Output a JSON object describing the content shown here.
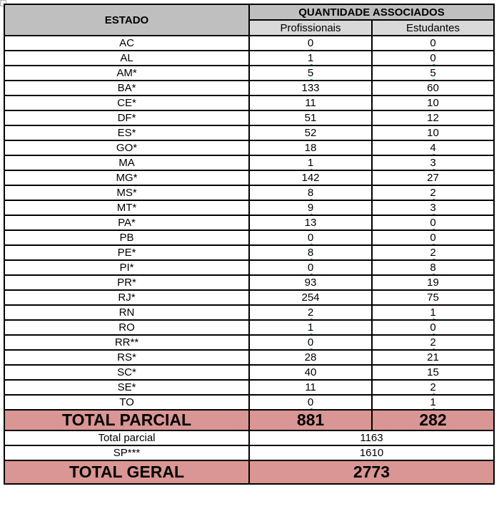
{
  "table": {
    "header": {
      "estado": "ESTADO",
      "quantidade_associados": "QUANTIDADE ASSOCIADOS",
      "profissionais": "Profissionais",
      "estudantes": "Estudantes"
    },
    "rows": [
      {
        "estado": "AC",
        "profissionais": "0",
        "estudantes": "0"
      },
      {
        "estado": "AL",
        "profissionais": "1",
        "estudantes": "0"
      },
      {
        "estado": "AM*",
        "profissionais": "5",
        "estudantes": "5"
      },
      {
        "estado": "BA*",
        "profissionais": "133",
        "estudantes": "60"
      },
      {
        "estado": "CE*",
        "profissionais": "11",
        "estudantes": "10"
      },
      {
        "estado": "DF*",
        "profissionais": "51",
        "estudantes": "12"
      },
      {
        "estado": "ES*",
        "profissionais": "52",
        "estudantes": "10"
      },
      {
        "estado": "GO*",
        "profissionais": "18",
        "estudantes": "4"
      },
      {
        "estado": "MA",
        "profissionais": "1",
        "estudantes": "3"
      },
      {
        "estado": "MG*",
        "profissionais": "142",
        "estudantes": "27"
      },
      {
        "estado": "MS*",
        "profissionais": "8",
        "estudantes": "2"
      },
      {
        "estado": "MT*",
        "profissionais": "9",
        "estudantes": "3"
      },
      {
        "estado": "PA*",
        "profissionais": "13",
        "estudantes": "0"
      },
      {
        "estado": "PB",
        "profissionais": "0",
        "estudantes": "0"
      },
      {
        "estado": "PE*",
        "profissionais": "8",
        "estudantes": "2"
      },
      {
        "estado": "PI*",
        "profissionais": "0",
        "estudantes": "8"
      },
      {
        "estado": "PR*",
        "profissionais": "93",
        "estudantes": "19"
      },
      {
        "estado": "RJ*",
        "profissionais": "254",
        "estudantes": "75"
      },
      {
        "estado": "RN",
        "profissionais": "2",
        "estudantes": "1"
      },
      {
        "estado": "RO",
        "profissionais": "1",
        "estudantes": "0"
      },
      {
        "estado": "RR**",
        "profissionais": "0",
        "estudantes": "2"
      },
      {
        "estado": "RS*",
        "profissionais": "28",
        "estudantes": "21"
      },
      {
        "estado": "SC*",
        "profissionais": "40",
        "estudantes": "15"
      },
      {
        "estado": "SE*",
        "profissionais": "11",
        "estudantes": "2"
      },
      {
        "estado": "TO",
        "profissionais": "0",
        "estudantes": "1"
      }
    ],
    "total_parcial_row": {
      "label": "TOTAL PARCIAL",
      "profissionais": "881",
      "estudantes": "282"
    },
    "subtotal_row": {
      "label": "Total parcial",
      "value": "1163"
    },
    "sp_row": {
      "label": "SP***",
      "value": "1610"
    },
    "total_geral_row": {
      "label": "TOTAL GERAL",
      "value": "2773"
    }
  },
  "colors": {
    "header_bg": "#bfbfbf",
    "subheader_bg": "#d9d9d9",
    "total_row_bg": "#d99694",
    "border": "#000000",
    "squiggle_green": "#2f9e44"
  }
}
